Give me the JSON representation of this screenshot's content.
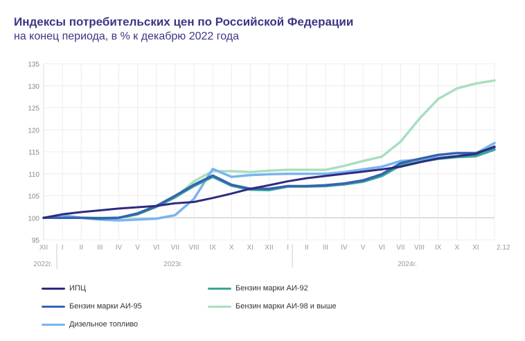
{
  "title": "Индексы потребительских цен по Российской Федерации",
  "subtitle": "на конец периода, в % к декабрю 2022 года",
  "chart_data": {
    "type": "line",
    "categories": [
      "XII",
      "I",
      "II",
      "III",
      "IV",
      "V",
      "VI",
      "VII",
      "VIII",
      "IX",
      "X",
      "XI",
      "XII",
      "I",
      "II",
      "III",
      "IV",
      "V",
      "VI",
      "VII",
      "VIII",
      "IX",
      "X",
      "XI",
      "2.12"
    ],
    "year_labels": [
      {
        "label": "2022г."
      },
      {
        "label": "2023г."
      },
      {
        "label": "2024г."
      }
    ],
    "ylim": [
      95,
      135
    ],
    "yticks": [
      95,
      100,
      105,
      110,
      115,
      120,
      125,
      130,
      135
    ],
    "grid": true,
    "legend_placement": "bottom",
    "series": [
      {
        "name": "ИПЦ",
        "color": "#2e2a7e",
        "values": [
          100,
          100.8,
          101.3,
          101.7,
          102.1,
          102.4,
          102.7,
          103.3,
          103.6,
          104.5,
          105.5,
          106.6,
          107.4,
          108.3,
          109.0,
          109.5,
          110.0,
          110.5,
          111.0,
          111.6,
          112.6,
          113.5,
          114.0,
          114.5,
          116.2
        ]
      },
      {
        "name": "Бензин марки АИ-92",
        "color": "#3aa699",
        "values": [
          100,
          100,
          100,
          99.8,
          100,
          100.8,
          102.5,
          104.7,
          107.2,
          109.3,
          107.3,
          106.4,
          106.3,
          107.1,
          107.1,
          107.2,
          107.6,
          108.2,
          109.5,
          111.9,
          112.7,
          113.4,
          113.8,
          114.0,
          115.5
        ]
      },
      {
        "name": "Бензин марки АИ-95",
        "color": "#3564b0",
        "values": [
          100,
          100,
          100,
          99.9,
          100,
          101,
          102.7,
          105,
          107.5,
          109.6,
          107.5,
          106.6,
          106.6,
          107.2,
          107.2,
          107.4,
          107.8,
          108.5,
          109.9,
          112.4,
          113.4,
          114.3,
          114.7,
          114.7,
          116.0
        ]
      },
      {
        "name": "Бензин марки АИ-98 и выше",
        "color": "#a8dfc0",
        "values": [
          100,
          100,
          100,
          100,
          100,
          100.8,
          102.5,
          104.6,
          108.3,
          110.6,
          110.6,
          110.4,
          110.7,
          110.9,
          110.9,
          110.9,
          111.8,
          112.9,
          113.9,
          117.3,
          122.5,
          127.0,
          129.4,
          130.5,
          131.2
        ]
      },
      {
        "name": "Дизельное топливо",
        "color": "#79b4ee",
        "values": [
          100,
          100.6,
          100,
          99.6,
          99.4,
          99.6,
          99.8,
          100.6,
          104.3,
          111.1,
          109.3,
          109.7,
          109.9,
          110.0,
          110.0,
          110.0,
          110.4,
          111.0,
          111.6,
          112.9,
          113.2,
          113.7,
          114.0,
          114.6,
          117.0
        ]
      }
    ]
  }
}
